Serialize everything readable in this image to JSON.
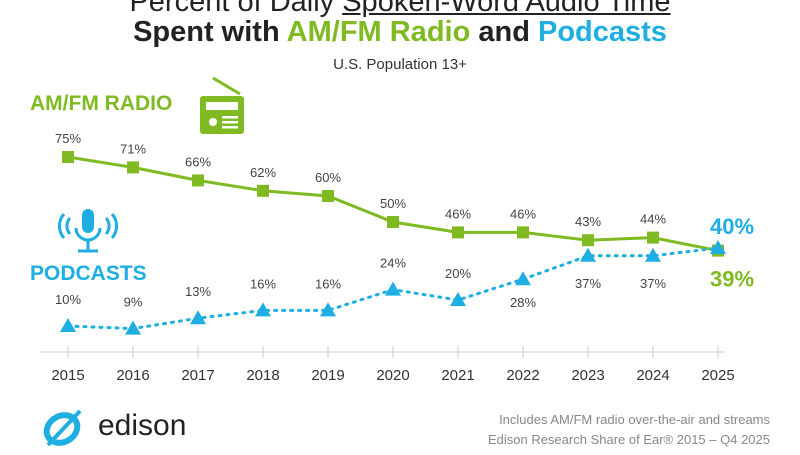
{
  "title_line1_prefix": "Percent of Daily ",
  "title_line1_underlined": "Spoken-Word Audio Time",
  "title_line2_prefix": "Spent with ",
  "title_line2_radio": "AM/FM Radio",
  "title_line2_mid": " and ",
  "title_line2_podcasts": "Podcasts",
  "subtitle": "U.S. Population 13+",
  "footnote1": "Includes AM/FM radio over-the-air and streams",
  "footnote2": "Edison Research Share of Ear® 2015 – Q4 2025",
  "logo_text": "edison",
  "colors": {
    "radio": "#7fba22",
    "podcasts": "#1eaee2"
  },
  "chart_data": {
    "type": "line",
    "x": [
      "2015",
      "2016",
      "2017",
      "2018",
      "2019",
      "2020",
      "2021",
      "2022",
      "2023",
      "2024",
      "2025"
    ],
    "ylim": [
      0,
      80
    ],
    "grid": false,
    "series": [
      {
        "name": "AM/FM RADIO",
        "icon": "radio-icon",
        "marker": "square",
        "line": "solid",
        "values": [
          75,
          71,
          66,
          62,
          60,
          50,
          46,
          46,
          43,
          44,
          39
        ],
        "labels": [
          "75%",
          "71%",
          "66%",
          "62%",
          "60%",
          "50%",
          "46%",
          "46%",
          "43%",
          "44%",
          "39%"
        ]
      },
      {
        "name": "PODCASTS",
        "icon": "microphone-icon",
        "marker": "triangle",
        "line": "dotted",
        "values": [
          10,
          9,
          13,
          16,
          16,
          24,
          20,
          28,
          37,
          37,
          40
        ],
        "labels": [
          "10%",
          "9%",
          "13%",
          "16%",
          "16%",
          "24%",
          "20%",
          "28%",
          "37%",
          "37%",
          "40%"
        ]
      }
    ]
  }
}
